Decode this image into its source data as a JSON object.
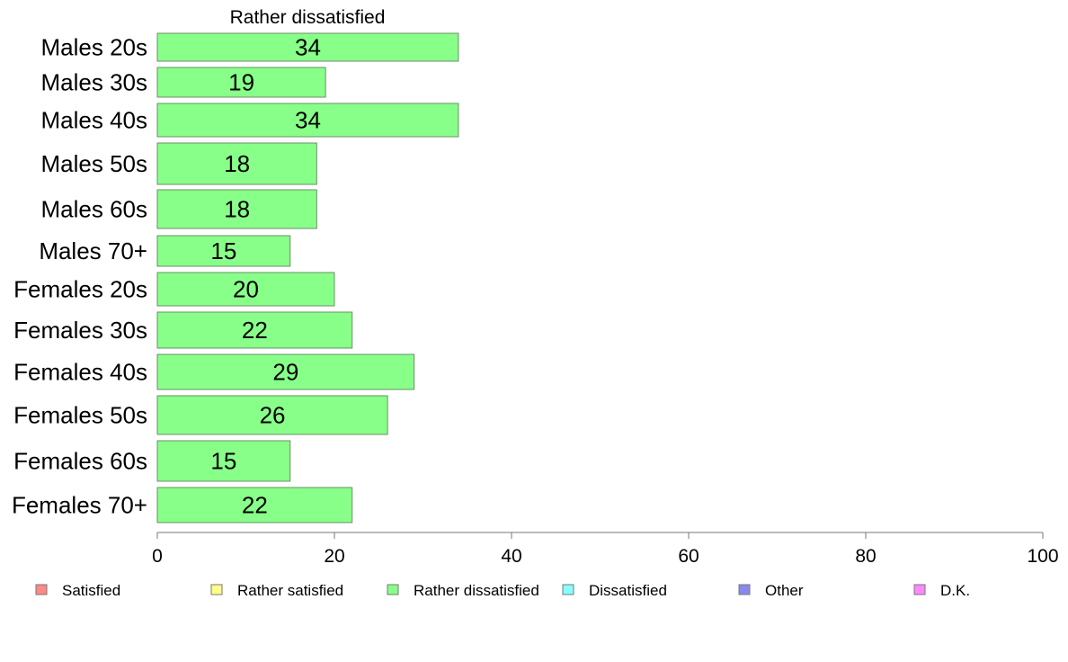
{
  "chart_data": {
    "type": "bar",
    "orientation": "horizontal",
    "title": "Rather dissatisfied",
    "categories": [
      "Males 20s",
      "Males 30s",
      "Males 40s",
      "Males 50s",
      "Males 60s",
      "Males 70+",
      "Females 20s",
      "Females 30s",
      "Females 40s",
      "Females 50s",
      "Females 60s",
      "Females 70+"
    ],
    "series": [
      {
        "name": "Rather dissatisfied",
        "values": [
          34,
          19,
          34,
          18,
          18,
          15,
          20,
          22,
          29,
          26,
          15,
          22
        ]
      }
    ],
    "xlim": [
      0,
      100
    ],
    "x_ticks": [
      0,
      20,
      40,
      60,
      80,
      100
    ],
    "bar_color": "#88ff88",
    "grid": false,
    "legend_position": "bottom",
    "legend": [
      {
        "label": "Satisfied",
        "color": "#ff8888"
      },
      {
        "label": "Rather satisfied",
        "color": "#ffff88"
      },
      {
        "label": "Rather dissatisfied",
        "color": "#88ff88"
      },
      {
        "label": "Dissatisfied",
        "color": "#88ffff"
      },
      {
        "label": "Other",
        "color": "#8888ee"
      },
      {
        "label": "D.K.",
        "color": "#ff88ff"
      }
    ]
  }
}
